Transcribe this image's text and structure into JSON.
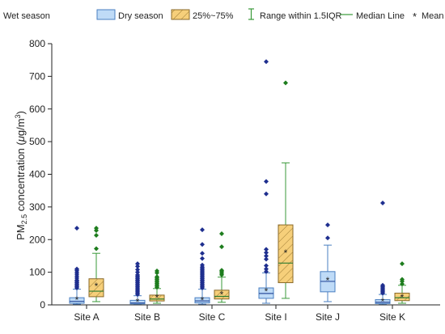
{
  "chart_data": {
    "type": "box",
    "ylabel_main": "PM",
    "ylabel_sub": "2.5",
    "ylabel_mid": " concentration (",
    "ylabel_mu": "μ",
    "ylabel_unit": "g/m",
    "ylabel_sup": "3",
    "ylabel_end": ")",
    "ylim": [
      0,
      800
    ],
    "yticks": [
      0,
      100,
      200,
      300,
      400,
      500,
      600,
      700,
      800
    ],
    "categories": [
      "Site A",
      "Site B",
      "Site C",
      "Site I",
      "Site J",
      "Site K"
    ],
    "legend": {
      "wet": "Wet season",
      "dry": "Dry season",
      "iqr": "25%~75%",
      "range": "Range within 1.5IQR",
      "median": "Median Line",
      "mean_symbol": "*",
      "mean": "Mean"
    },
    "colors": {
      "dry_fill": "#bfdbf7",
      "dry_stroke": "#4a7fc1",
      "dry_outlier": "#1f2f8f",
      "wet_fill": "#f6cf7a",
      "wet_stroke": "#8a6a2a",
      "wet_outlier": "#1e7d1e",
      "whisker_dry": "#4a7fc1",
      "whisker_wet": "#3a9a3a"
    },
    "series": [
      {
        "name": "Dry season",
        "boxes": [
          {
            "site": "Site A",
            "min": 2,
            "q1": 5,
            "median": 11,
            "q3": 22,
            "max": 48,
            "mean": 16,
            "outliers": [
              52,
              56,
              60,
              64,
              68,
              72,
              76,
              82,
              88,
              94,
              100,
              106,
              110,
              235
            ]
          },
          {
            "site": "Site B",
            "min": 1,
            "q1": 3,
            "median": 6,
            "q3": 14,
            "max": 28,
            "mean": 10,
            "outliers": [
              32,
              36,
              40,
              44,
              48,
              52,
              56,
              60,
              64,
              68,
              72,
              76,
              80,
              84,
              88,
              92,
              100,
              108,
              118,
              126
            ]
          },
          {
            "site": "Site C",
            "min": 2,
            "q1": 6,
            "median": 12,
            "q3": 22,
            "max": 48,
            "mean": 15,
            "outliers": [
              52,
              56,
              60,
              64,
              68,
              72,
              76,
              80,
              84,
              88,
              92,
              96,
              100,
              104,
              108,
              112,
              116,
              122,
              142,
              158,
              185,
              230
            ]
          },
          {
            "site": "Site I",
            "min": 5,
            "q1": 20,
            "median": 35,
            "q3": 52,
            "max": 98,
            "mean": 42,
            "outliers": [
              102,
              110,
              120,
              140,
              150,
              160,
              170,
              340,
              378,
              745
            ]
          },
          {
            "site": "Site J",
            "min": 10,
            "q1": 40,
            "median": 72,
            "q3": 102,
            "max": 183,
            "mean": 76,
            "outliers": [
              205,
              245
            ]
          },
          {
            "site": "Site K",
            "min": 1,
            "q1": 4,
            "median": 8,
            "q3": 16,
            "max": 32,
            "mean": 11,
            "outliers": [
              36,
              40,
              44,
              48,
              52,
              56,
              60,
              312
            ]
          }
        ]
      },
      {
        "name": "Wet season",
        "boxes": [
          {
            "site": "Site A",
            "min": 10,
            "q1": 25,
            "median": 42,
            "q3": 80,
            "max": 158,
            "mean": 58,
            "outliers": [
              172,
              213,
              228,
              235
            ]
          },
          {
            "site": "Site B",
            "min": 5,
            "q1": 12,
            "median": 18,
            "q3": 30,
            "max": 50,
            "mean": 22,
            "outliers": [
              54,
              58,
              62,
              66,
              70,
              74,
              78,
              82,
              86,
              98,
              104
            ]
          },
          {
            "site": "Site C",
            "min": 8,
            "q1": 18,
            "median": 26,
            "q3": 45,
            "max": 85,
            "mean": 32,
            "outliers": [
              92,
              97,
              102,
              106,
              178,
              218
            ]
          },
          {
            "site": "Site I",
            "min": 20,
            "q1": 68,
            "median": 128,
            "q3": 245,
            "max": 435,
            "mean": 160,
            "outliers": [
              680
            ]
          },
          {
            "site": "Site K",
            "min": 5,
            "q1": 13,
            "median": 22,
            "q3": 36,
            "max": 60,
            "mean": 24,
            "outliers": [
              64,
              72,
              78,
              126
            ]
          }
        ]
      }
    ]
  }
}
